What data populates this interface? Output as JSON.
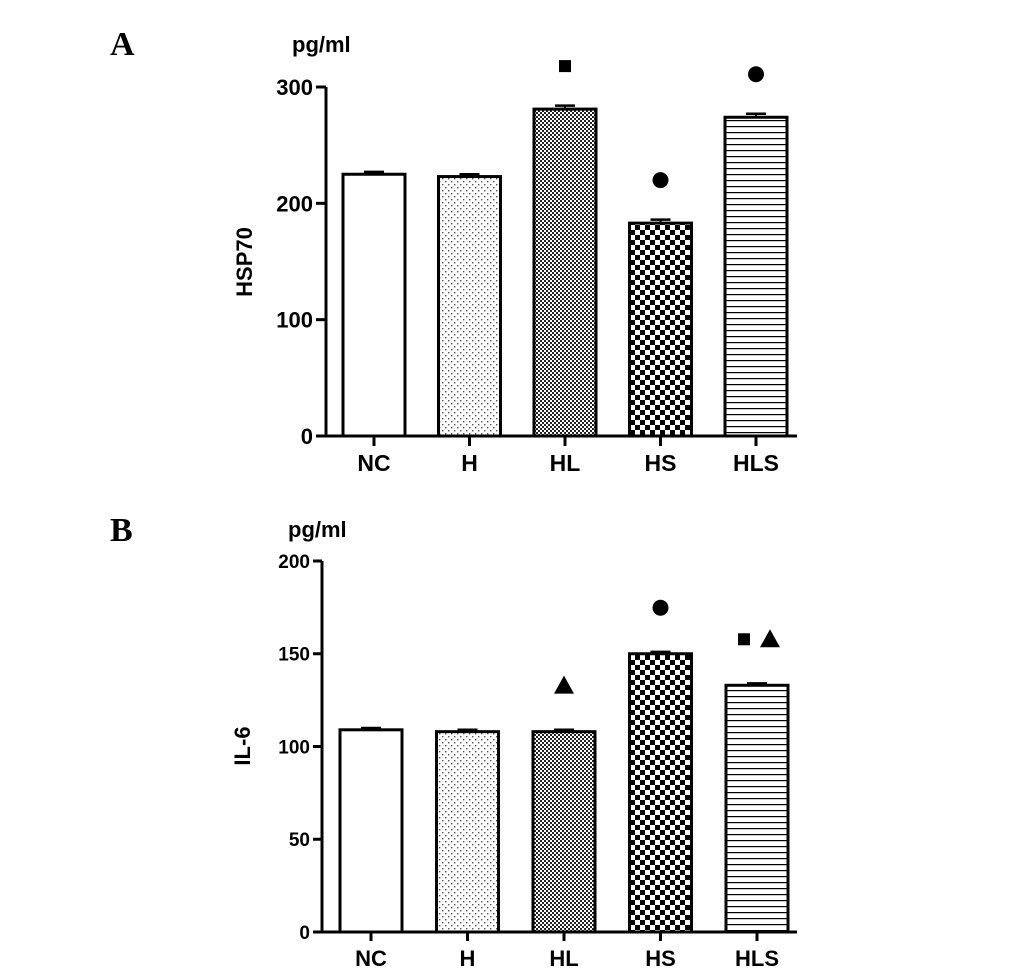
{
  "chart_data": [
    {
      "type": "bar",
      "panel": "A",
      "unit": "pg/ml",
      "ylabel": "HSP70",
      "xlabel": "",
      "categories": [
        "NC",
        "H",
        "HL",
        "HS",
        "HLS"
      ],
      "values": [
        225,
        223,
        281,
        183,
        274
      ],
      "errors": [
        2,
        2,
        3,
        3,
        3
      ],
      "patterns": [
        "none",
        "dots-sparse",
        "checker-fine",
        "checker-coarse",
        "hlines"
      ],
      "markers": [
        [],
        [],
        [
          "square"
        ],
        [
          "circle"
        ],
        [
          "circle"
        ]
      ],
      "ylim": [
        0,
        300
      ],
      "yticks": [
        0,
        100,
        200,
        300
      ]
    },
    {
      "type": "bar",
      "panel": "B",
      "unit": "pg/ml",
      "ylabel": "IL-6",
      "xlabel": "",
      "categories": [
        "NC",
        "H",
        "HL",
        "HS",
        "HLS"
      ],
      "values": [
        109,
        108,
        108,
        150,
        133
      ],
      "errors": [
        1,
        1,
        1,
        1,
        1
      ],
      "patterns": [
        "none",
        "dots-sparse",
        "checker-fine",
        "checker-coarse",
        "hlines"
      ],
      "markers": [
        [],
        [],
        [
          "triangle"
        ],
        [
          "circle"
        ],
        [
          "square",
          "triangle"
        ]
      ],
      "ylim": [
        0,
        200
      ],
      "yticks": [
        0,
        50,
        100,
        150,
        200
      ]
    }
  ],
  "colors": {
    "ink": "#000000",
    "background": "#ffffff"
  }
}
